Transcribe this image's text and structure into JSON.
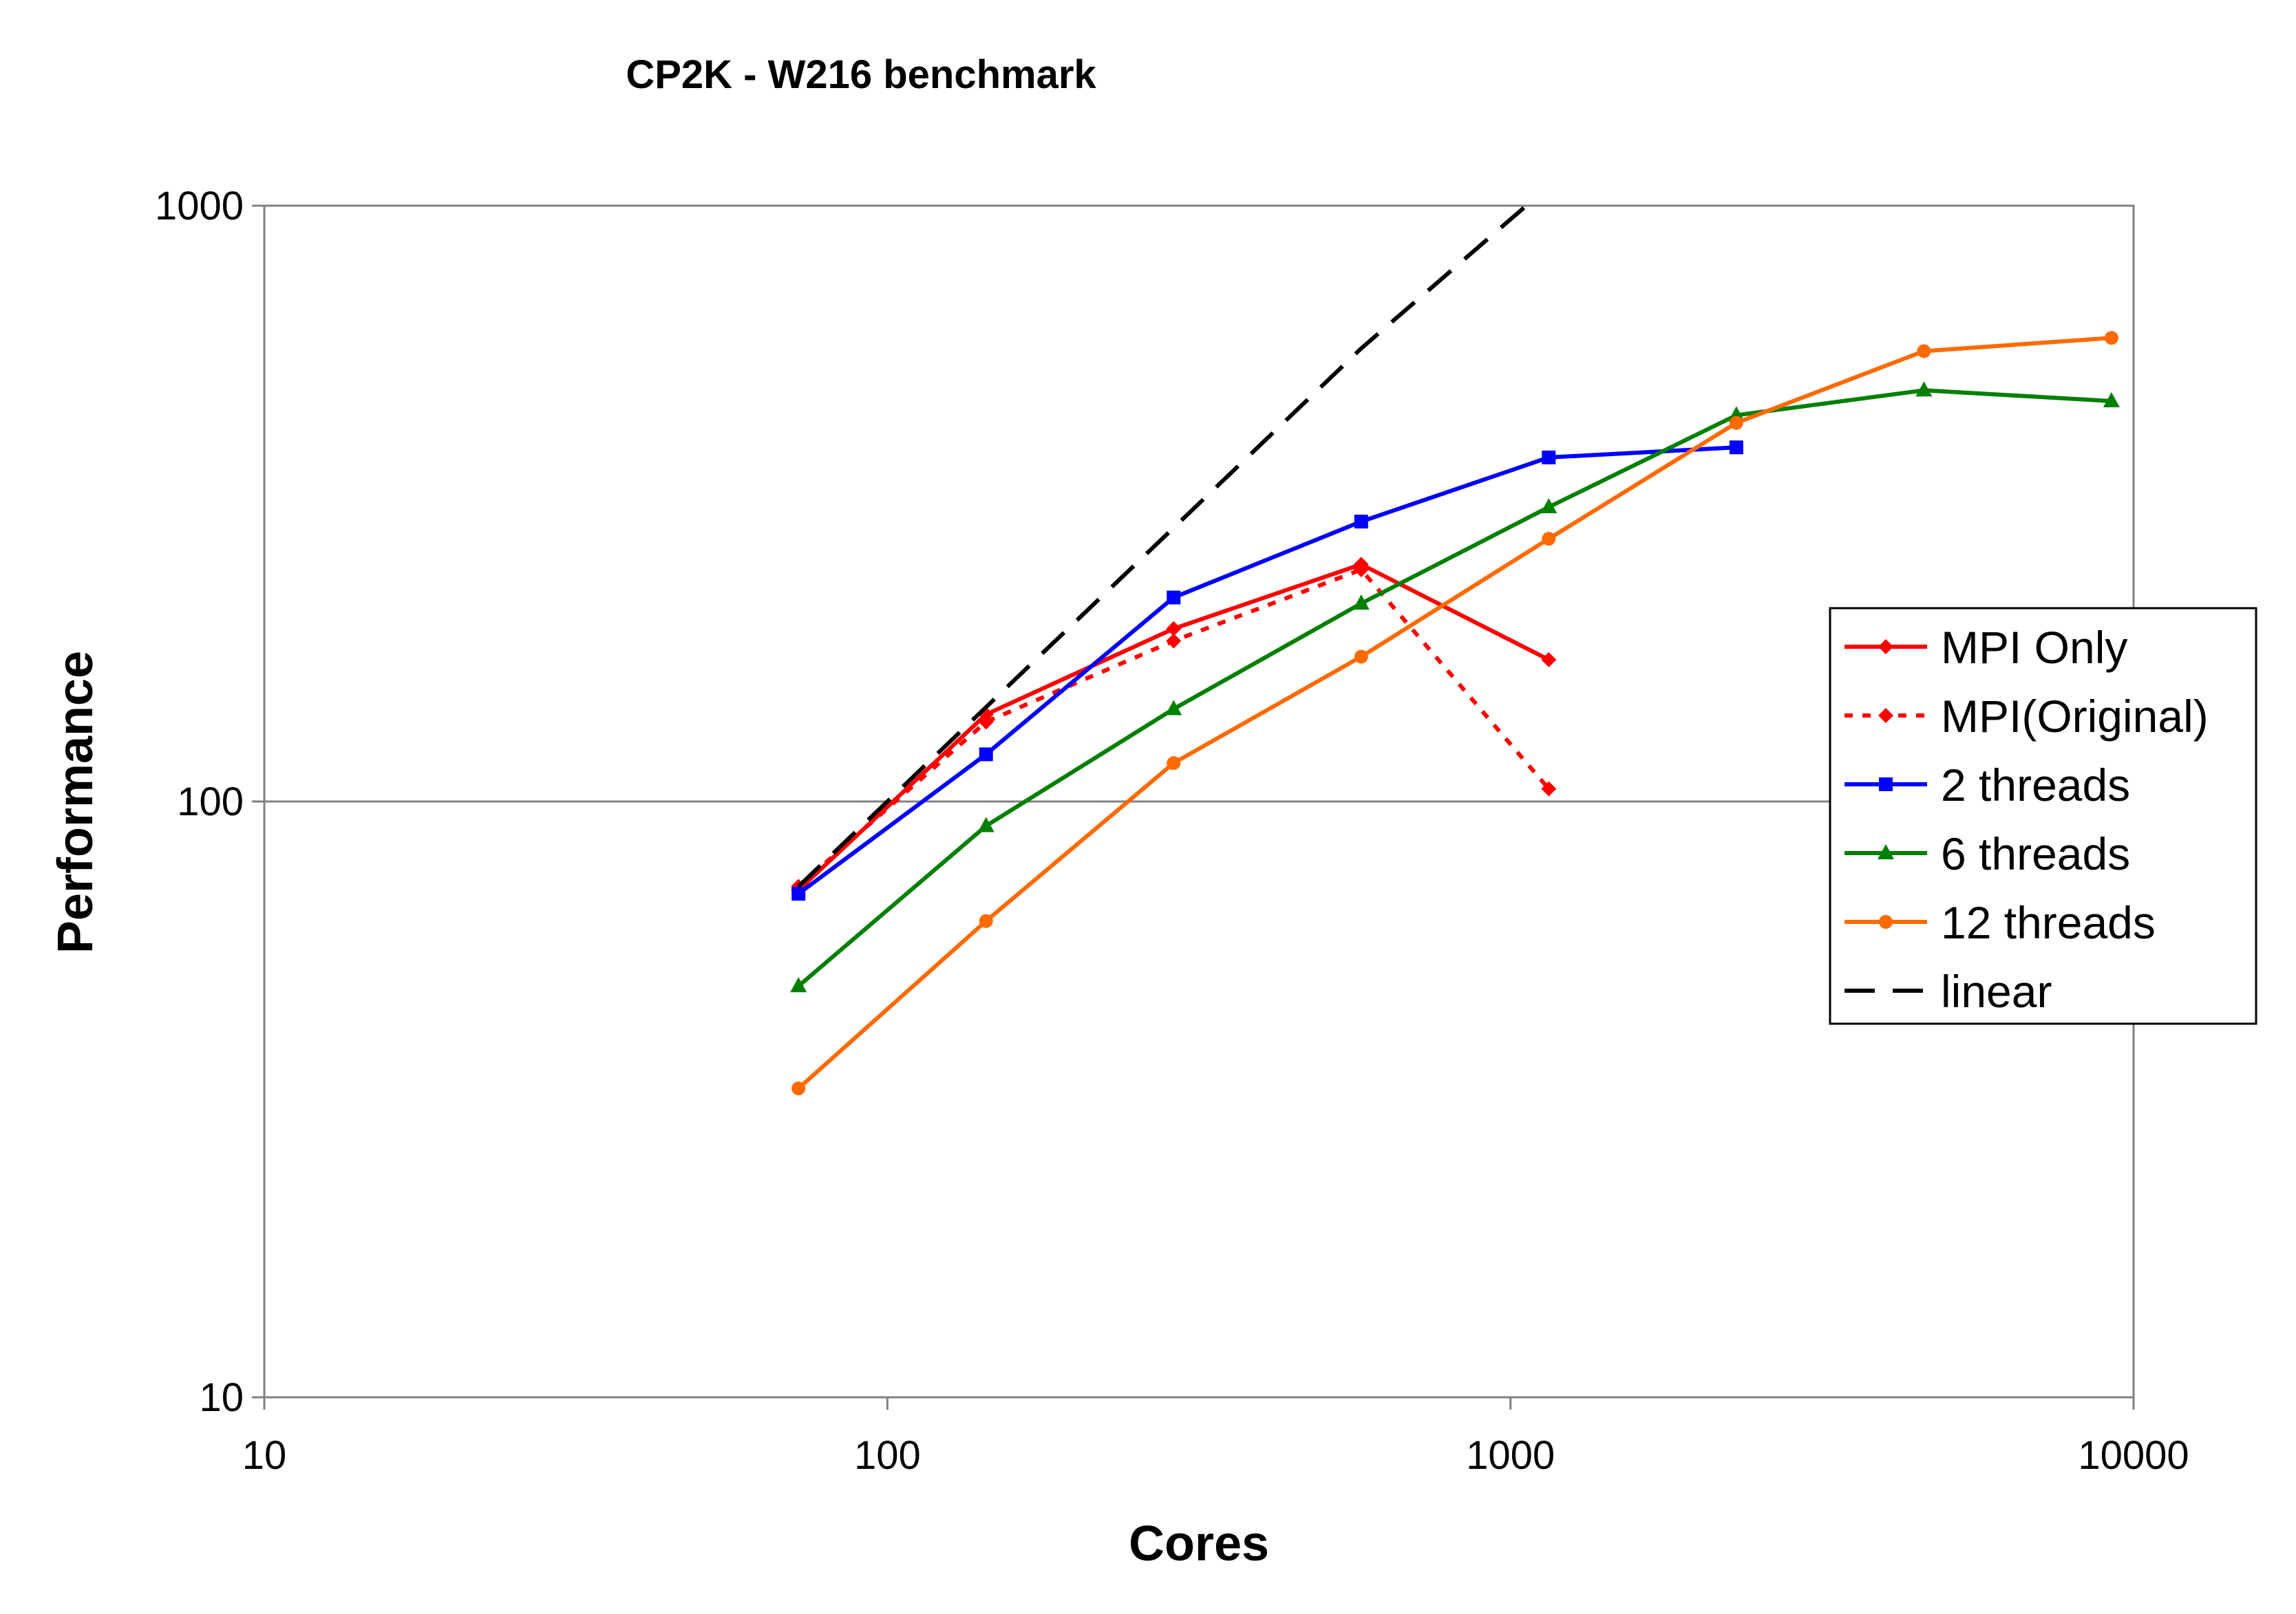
{
  "chart_data": {
    "type": "line",
    "title": "CP2K - W216 benchmark",
    "xlabel": "Cores",
    "ylabel": "Performance",
    "xscale": "log",
    "yscale": "log",
    "xlim": [
      10,
      10000
    ],
    "ylim": [
      10,
      1000
    ],
    "x_ticks": [
      "10",
      "100",
      "1000",
      "10000"
    ],
    "y_ticks": [
      "10",
      "100",
      "1000"
    ],
    "grid": "horizontal major gridlines",
    "legend_position": "right",
    "series": [
      {
        "name": "MPI Only",
        "color": "#ff0000",
        "dash": "solid",
        "marker": "diamond",
        "x": [
          72,
          144,
          288,
          576,
          1152
        ],
        "y": [
          71,
          140,
          195,
          250,
          173
        ]
      },
      {
        "name": "MPI(Original)",
        "color": "#ff0000",
        "dash": "dotted",
        "marker": "diamond",
        "x": [
          72,
          144,
          288,
          576,
          1152
        ],
        "y": [
          72,
          136,
          186,
          245,
          105
        ]
      },
      {
        "name": "2 threads",
        "color": "#0000ff",
        "dash": "solid",
        "marker": "square",
        "x": [
          72,
          144,
          288,
          576,
          1152,
          2304
        ],
        "y": [
          70,
          120,
          220,
          295,
          378,
          393
        ]
      },
      {
        "name": "6 threads",
        "color": "#008000",
        "dash": "solid",
        "marker": "triangle",
        "x": [
          72,
          144,
          288,
          576,
          1152,
          2304,
          4608,
          9216
        ],
        "y": [
          49,
          91,
          143,
          215,
          312,
          445,
          490,
          470
        ]
      },
      {
        "name": "12 threads",
        "color": "#ff6a00",
        "dash": "solid",
        "marker": "circle",
        "x": [
          72,
          144,
          288,
          576,
          1152,
          2304,
          4608,
          9216
        ],
        "y": [
          33,
          63,
          116,
          175,
          276,
          432,
          570,
          600
        ]
      },
      {
        "name": "linear",
        "color": "#000000",
        "dash": "dashed",
        "marker": "none",
        "x": [
          72,
          144,
          288,
          576,
          1060
        ],
        "y": [
          72,
          144,
          288,
          576,
          1000
        ]
      }
    ]
  }
}
